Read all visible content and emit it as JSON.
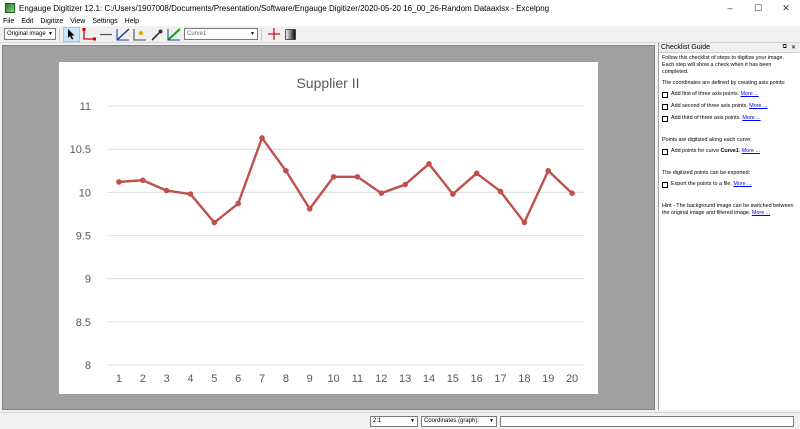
{
  "window": {
    "title": "Engauge Digitizer 12.1: C:/Users/1907008/Documents/Presentation/Software/Engauge Digitizer/2020-05-20 16_00_26-Random Dataaxlsx - Excelpng",
    "minimize": "–",
    "maximize": "☐",
    "close": "✕"
  },
  "menu": [
    "File",
    "Edit",
    "Digitize",
    "View",
    "Settings",
    "Help"
  ],
  "toolbar": {
    "background_select": "Original image",
    "curve_select": "Curve1"
  },
  "chart_data": {
    "type": "line",
    "title": "Supplier II",
    "xlabel": "",
    "ylabel": "",
    "categories": [
      "1",
      "2",
      "3",
      "4",
      "5",
      "6",
      "7",
      "8",
      "9",
      "10",
      "11",
      "12",
      "13",
      "14",
      "15",
      "16",
      "17",
      "18",
      "19",
      "20"
    ],
    "series": [
      {
        "values": [
          10.12,
          10.14,
          10.02,
          9.98,
          9.65,
          9.87,
          10.63,
          10.25,
          9.81,
          10.18,
          10.18,
          9.99,
          10.09,
          10.33,
          9.98,
          10.22,
          10.01,
          9.65,
          10.25,
          9.99
        ]
      }
    ],
    "ylim": [
      8,
      11
    ],
    "yticks": [
      "8",
      "8.5",
      "9",
      "9.5",
      "10",
      "10.5",
      "11"
    ],
    "grid": true,
    "legend": "none",
    "line_color": "#c0504d",
    "grid_color": "#d9d9d9",
    "text_color": "#595959"
  },
  "checklist": {
    "title": "Checklist Guide",
    "float_icon": "⧉",
    "close_icon": "✕",
    "intro": "Follow this checklist of steps to digitize your image. Each step will show a check when it has been completed.",
    "axis_heading": "The coordinates are defined by creating axis points:",
    "step1": "Add first of three axis points.",
    "step2": "Add second of three axis points.",
    "step3": "Add third of three axis points.",
    "points_heading": "Points are digitized along each curve:",
    "step4_prefix": "Add points for curve",
    "step4_curve": "Curve1",
    "step4_suffix": ".",
    "export_heading": "The digitized points can be exported:",
    "step5": "Export the points to a file.",
    "hint": "Hint - The background image can be switched between the original image and filtered image.",
    "more": "More ..."
  },
  "status": {
    "zoom": "2:1",
    "coords_mode": "Coordinates (graph):",
    "coords_value": ""
  }
}
